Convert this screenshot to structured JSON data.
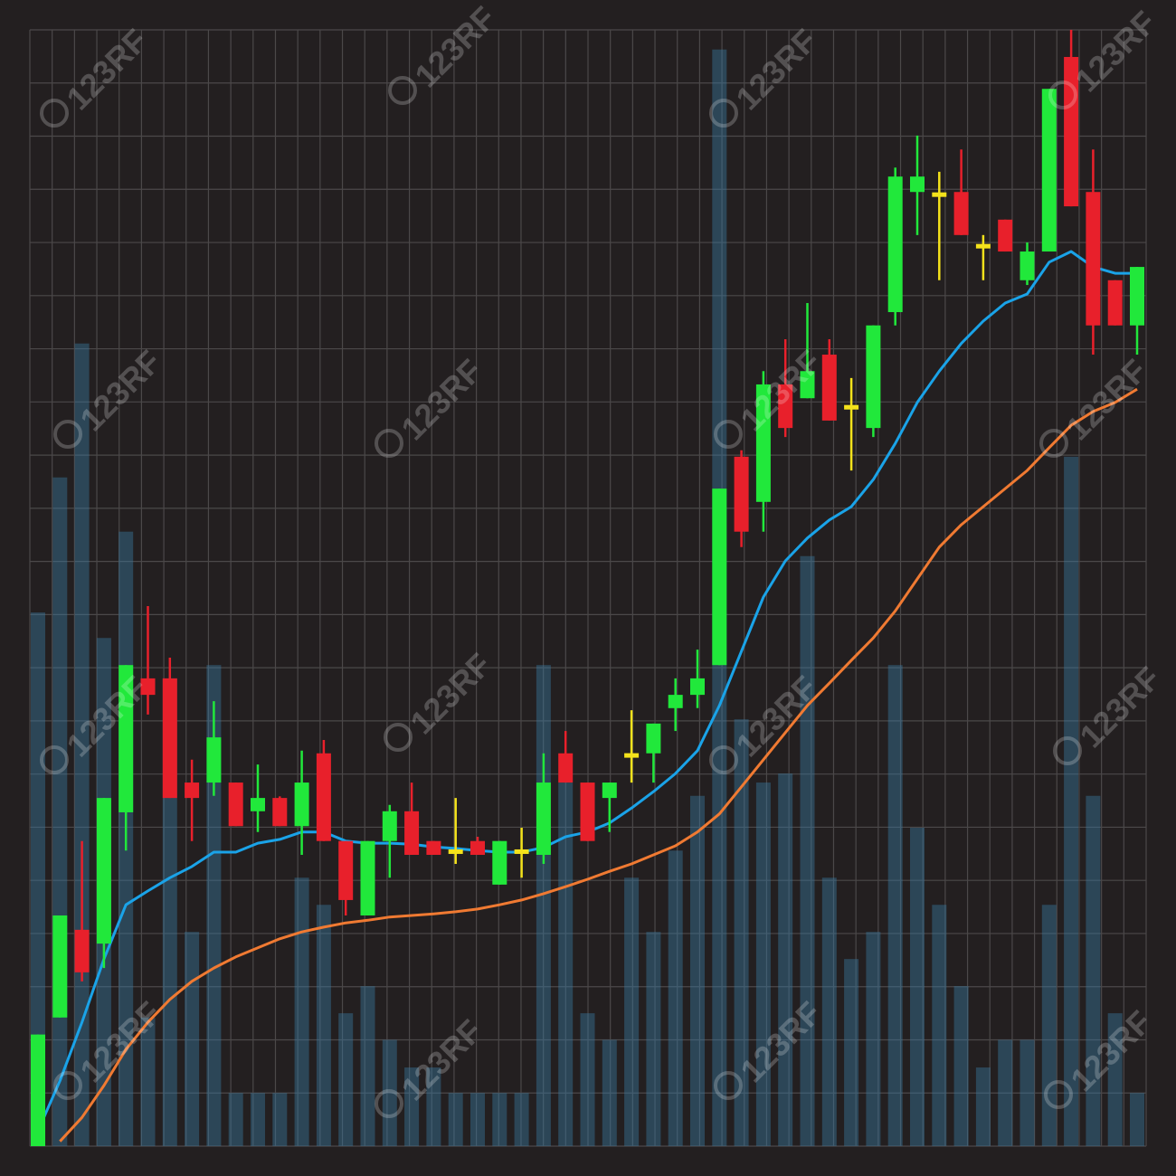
{
  "chart_data": {
    "type": "candlestick",
    "watermark": "123RF",
    "categories": [
      null,
      null,
      null,
      null,
      null,
      null,
      null,
      null,
      null,
      null,
      null,
      null,
      null,
      null,
      null,
      null,
      null,
      null,
      null,
      null,
      null,
      null,
      null,
      null,
      null,
      null,
      null,
      null,
      null,
      null,
      null,
      null,
      null,
      null,
      null,
      null,
      null,
      null,
      null,
      null,
      null,
      null,
      null,
      null,
      null,
      null,
      null,
      null,
      null,
      null,
      null
    ],
    "open": [
      0,
      2.42,
      4.07,
      3.81,
      6.28,
      8.8,
      8.8,
      6.84,
      6.84,
      6.84,
      6.3,
      6.55,
      6.02,
      7.39,
      5.74,
      4.34,
      5.74,
      6.3,
      5.74,
      5.54,
      5.74,
      4.92,
      5.54,
      5.48,
      7.39,
      6.84,
      6.55,
      7.35,
      7.39,
      8.24,
      8.49,
      9.05,
      12.97,
      12.12,
      14.33,
      14.07,
      14.89,
      13.9,
      13.51,
      15.69,
      17.95,
      17.9,
      17.95,
      16.93,
      17.43,
      16.29,
      16.83,
      20.49,
      17.95,
      16.29,
      15.44
    ],
    "high": [
      2.1,
      4.34,
      5.74,
      6.55,
      9.05,
      10.16,
      9.19,
      7.27,
      8.37,
      6.84,
      7.18,
      6.58,
      7.44,
      7.64,
      5.74,
      5.74,
      6.42,
      6.84,
      5.74,
      6.55,
      5.82,
      5.74,
      5.99,
      7.39,
      7.81,
      6.84,
      6.84,
      8.2,
      7.95,
      8.8,
      9.34,
      12.37,
      13.09,
      14.58,
      15.18,
      15.86,
      15.18,
      14.45,
      15.44,
      18.41,
      19.01,
      18.33,
      18.75,
      17.14,
      17.43,
      17.0,
      19.89,
      21.0,
      18.75,
      16.29,
      16.54
    ],
    "low": [
      0,
      2.42,
      3.1,
      3.35,
      5.56,
      8.12,
      6.55,
      5.74,
      6.59,
      6.02,
      5.91,
      6.02,
      5.48,
      5.74,
      4.34,
      4.34,
      5.05,
      5.48,
      5.48,
      5.31,
      5.48,
      4.92,
      5.05,
      5.31,
      6.84,
      5.74,
      5.91,
      6.84,
      6.84,
      7.81,
      8.24,
      9.05,
      11.27,
      11.56,
      13.34,
      14.07,
      13.65,
      12.71,
      13.34,
      15.44,
      17.14,
      16.29,
      17.14,
      16.29,
      16.83,
      16.2,
      16.83,
      17.68,
      14.89,
      15.44,
      14.89
    ],
    "close": [
      2.1,
      4.34,
      3.27,
      6.55,
      9.05,
      8.49,
      6.55,
      6.55,
      7.69,
      6.02,
      6.55,
      6.02,
      6.84,
      5.74,
      4.63,
      5.74,
      6.3,
      5.48,
      5.48,
      5.54,
      5.48,
      5.74,
      5.54,
      6.84,
      6.84,
      5.74,
      6.84,
      7.35,
      7.95,
      8.49,
      8.8,
      12.37,
      11.56,
      14.33,
      13.51,
      14.58,
      13.65,
      13.9,
      15.44,
      18.24,
      18.24,
      17.9,
      17.14,
      16.93,
      16.83,
      16.83,
      19.89,
      17.68,
      15.44,
      15.44,
      16.54
    ],
    "up_color": "#21e83b",
    "down_color": "#e8202b",
    "doji_color": "#f4e21b",
    "ylim": [
      0,
      21
    ],
    "yticks": [
      0,
      1,
      2,
      3,
      4,
      5,
      6,
      7,
      8,
      9,
      10,
      11,
      12,
      13,
      14,
      15,
      16,
      17,
      18,
      19,
      20,
      21
    ],
    "grid": true,
    "grid_color": "#4b4849",
    "volume": {
      "axis": "y2",
      "color": "#3a7ca5",
      "values": [
        10.04,
        12.58,
        15.1,
        9.56,
        11.56,
        2.42,
        8.8,
        4.03,
        9.05,
        1.0,
        1.0,
        1.0,
        5.05,
        4.54,
        2.5,
        3.01,
        2.0,
        1.48,
        1.48,
        1.0,
        1.0,
        1.0,
        1.0,
        9.05,
        6.84,
        2.5,
        2.0,
        5.05,
        4.03,
        5.56,
        6.59,
        20.63,
        8.03,
        6.84,
        7.01,
        11.1,
        5.05,
        3.52,
        4.03,
        9.05,
        5.99,
        4.54,
        3.01,
        1.48,
        2.0,
        2.0,
        4.54,
        12.97,
        6.59,
        2.5,
        1.0
      ]
    },
    "y2lim": [
      0,
      21
    ],
    "moving_averages": [
      {
        "color": "#1aa3e8",
        "values": [
          0.29,
          1.23,
          2.33,
          3.52,
          4.54,
          4.8,
          5.05,
          5.26,
          5.53,
          5.53,
          5.7,
          5.77,
          5.91,
          5.91,
          5.74,
          5.7,
          5.7,
          5.68,
          5.63,
          5.6,
          5.56,
          5.53,
          5.53,
          5.62,
          5.82,
          5.91,
          6.08,
          6.36,
          6.67,
          7.01,
          7.44,
          8.29,
          9.31,
          10.33,
          11.01,
          11.44,
          11.78,
          12.03,
          12.54,
          13.22,
          13.99,
          14.58,
          15.1,
          15.52,
          15.86,
          16.03,
          16.63,
          16.83,
          16.54,
          16.42,
          16.42
        ]
      },
      {
        "color": "#f07a32",
        "values": [
          null,
          0.09,
          0.54,
          1.14,
          1.82,
          2.33,
          2.76,
          3.1,
          3.35,
          3.56,
          3.73,
          3.9,
          4.03,
          4.12,
          4.2,
          4.25,
          4.31,
          4.34,
          4.37,
          4.41,
          4.46,
          4.54,
          4.63,
          4.75,
          4.88,
          5.02,
          5.17,
          5.31,
          5.48,
          5.65,
          5.91,
          6.25,
          6.76,
          7.27,
          7.78,
          8.29,
          8.71,
          9.14,
          9.56,
          10.07,
          10.67,
          11.27,
          11.69,
          12.03,
          12.37,
          12.71,
          13.14,
          13.56,
          13.82,
          13.99,
          14.24
        ]
      }
    ]
  }
}
